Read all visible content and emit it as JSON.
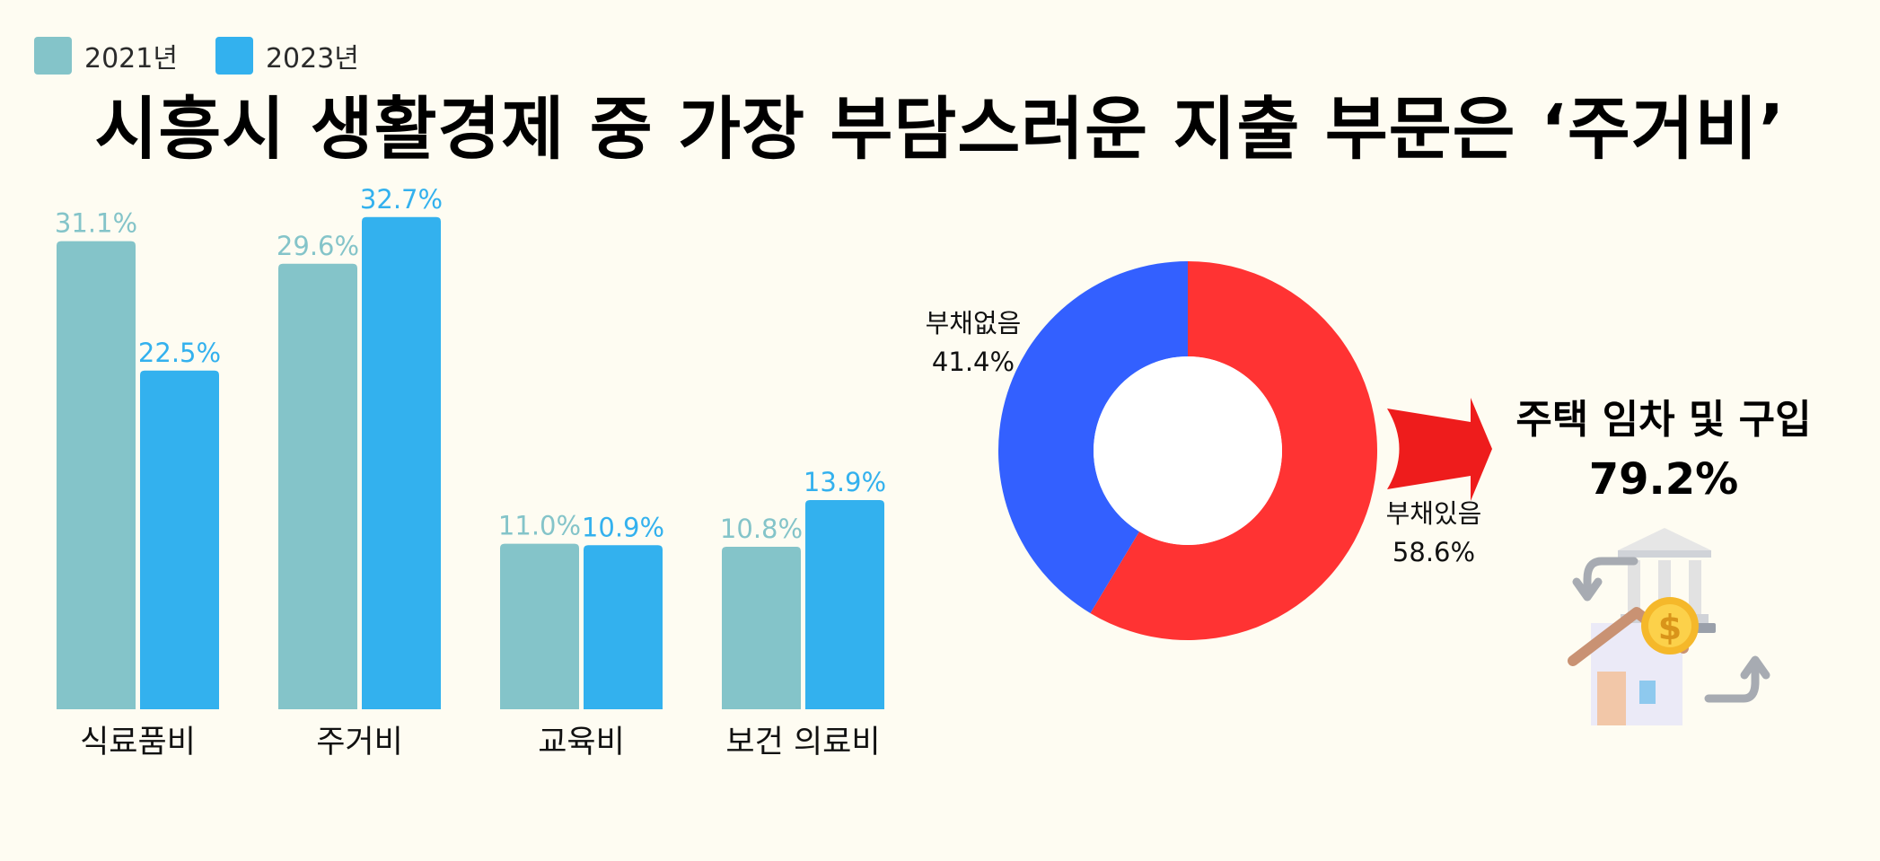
{
  "legend": {
    "items": [
      {
        "label": "2021년",
        "color": "#84c4c9"
      },
      {
        "label": "2023년",
        "color": "#33b1ee"
      }
    ]
  },
  "chart_data": [
    {
      "type": "bar",
      "title": "시흥시 생활경제 중 가장 부담스러운 지출 부문은 ‘주거비’",
      "categories": [
        "식료품비",
        "주거비",
        "교육비",
        "보건 의료비"
      ],
      "series": [
        {
          "name": "2021년",
          "color": "#84c4c9",
          "values": [
            31.1,
            29.6,
            11.0,
            10.8
          ],
          "labels": [
            "31.1%",
            "29.6%",
            "11.0%",
            "10.8%"
          ]
        },
        {
          "name": "2023년",
          "color": "#33b1ee",
          "values": [
            22.5,
            32.7,
            10.9,
            13.9
          ],
          "labels": [
            "22.5%",
            "32.7%",
            "10.9%",
            "13.9%"
          ]
        }
      ],
      "ylim": [
        0,
        34
      ],
      "grid": false,
      "legend": "top-left"
    },
    {
      "type": "pie",
      "donut": true,
      "slices": [
        {
          "label": "부채있음",
          "value": 58.6,
          "display": "58.6%",
          "color": "#ff3333"
        },
        {
          "label": "부채없음",
          "value": 41.4,
          "display": "41.4%",
          "color": "#3360ff"
        }
      ]
    }
  ],
  "callout": {
    "text": "주택 임차 및 구입",
    "value": "79.2%",
    "arrow_color": "#ee1c1c",
    "icon": "house-bank-money-icon"
  }
}
